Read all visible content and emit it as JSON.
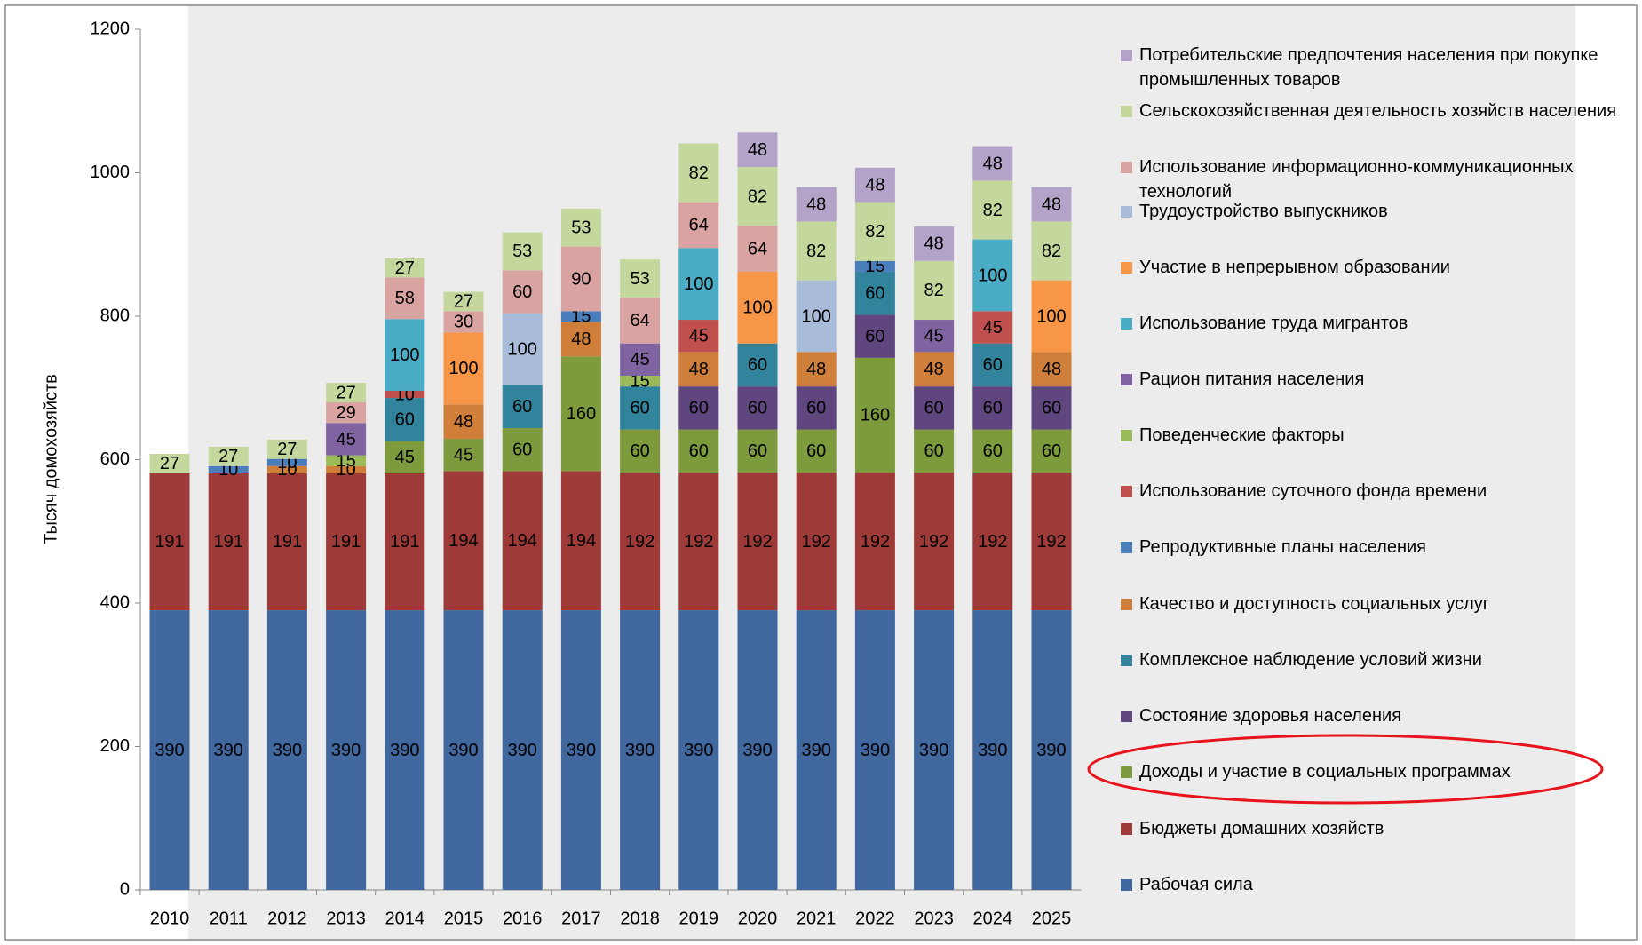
{
  "chart_data": {
    "type": "stacked_bar",
    "ylabel": "Тысяч домохозяйств",
    "categories": [
      "2010",
      "2011",
      "2012",
      "2013",
      "2014",
      "2015",
      "2016",
      "2017",
      "2018",
      "2019",
      "2020",
      "2021",
      "2022",
      "2023",
      "2024",
      "2025"
    ],
    "ylim": [
      0,
      1200
    ],
    "yticks": [
      0,
      200,
      400,
      600,
      800,
      1000,
      1200
    ],
    "series": [
      {
        "name": "Рабочая сила",
        "color": "#40679e",
        "values": [
          390,
          390,
          390,
          390,
          390,
          390,
          390,
          390,
          390,
          390,
          390,
          390,
          390,
          390,
          390,
          390
        ]
      },
      {
        "name": "Бюджеты домашних хозяйств",
        "color": "#9e3b38",
        "values": [
          191,
          191,
          191,
          191,
          191,
          194,
          194,
          194,
          192,
          192,
          192,
          192,
          192,
          192,
          192,
          192
        ]
      },
      {
        "name": "Доходы и участие в социальных программах",
        "color": "#7d9a3c",
        "values": [
          null,
          null,
          null,
          null,
          45,
          45,
          60,
          160,
          60,
          60,
          60,
          60,
          160,
          60,
          60,
          60
        ]
      },
      {
        "name": "Состояние здоровья населения",
        "color": "#5f467f",
        "values": [
          null,
          null,
          null,
          null,
          null,
          null,
          null,
          null,
          null,
          60,
          60,
          60,
          60,
          60,
          60,
          60
        ]
      },
      {
        "name": "Комплексное наблюдение условий жизни",
        "color": "#31849b",
        "values": [
          null,
          null,
          null,
          null,
          60,
          null,
          60,
          null,
          60,
          null,
          60,
          null,
          60,
          null,
          60,
          null
        ]
      },
      {
        "name": "Качество и доступность социальных услуг",
        "color": "#d07f3a",
        "values": [
          null,
          null,
          10,
          10,
          null,
          48,
          null,
          48,
          null,
          48,
          null,
          48,
          null,
          48,
          null,
          48
        ]
      },
      {
        "name": "Репродуктивные планы населения",
        "color": "#4a7ebb",
        "values": [
          null,
          10,
          10,
          null,
          null,
          null,
          null,
          15,
          null,
          null,
          null,
          null,
          15,
          null,
          null,
          null
        ]
      },
      {
        "name": "Использование суточного фонда времени",
        "color": "#c0504d",
        "values": [
          null,
          null,
          null,
          null,
          10,
          null,
          null,
          null,
          null,
          45,
          null,
          null,
          null,
          null,
          45,
          null
        ]
      },
      {
        "name": "Поведенческие факторы",
        "color": "#9bbb59",
        "values": [
          null,
          null,
          null,
          15,
          null,
          null,
          null,
          null,
          15,
          null,
          null,
          null,
          null,
          null,
          null,
          null
        ]
      },
      {
        "name": "Рацион питания населения",
        "color": "#8064a2",
        "values": [
          null,
          null,
          null,
          45,
          null,
          null,
          null,
          null,
          45,
          null,
          null,
          null,
          null,
          45,
          null,
          null
        ]
      },
      {
        "name": "Использование труда мигрантов",
        "color": "#4bacc6",
        "values": [
          null,
          null,
          null,
          null,
          100,
          null,
          null,
          null,
          null,
          100,
          null,
          null,
          null,
          null,
          100,
          null
        ]
      },
      {
        "name": "Участие в непрерывном образовании",
        "color": "#f79646",
        "values": [
          null,
          null,
          null,
          null,
          null,
          100,
          null,
          null,
          null,
          null,
          100,
          null,
          null,
          null,
          null,
          100
        ]
      },
      {
        "name": "Трудоустройство выпускников",
        "color": "#a9bcda",
        "values": [
          null,
          null,
          null,
          null,
          null,
          null,
          100,
          null,
          null,
          null,
          null,
          100,
          null,
          null,
          null,
          null
        ]
      },
      {
        "name": "Использование информационно-коммуникационных технологий",
        "color": "#d9a3a2",
        "values": [
          null,
          null,
          null,
          29,
          58,
          30,
          60,
          90,
          64,
          64,
          64,
          null,
          null,
          null,
          null,
          null
        ]
      },
      {
        "name": "Сельскохозяйственная деятельность хозяйств населения",
        "color": "#c4d79d",
        "values": [
          27,
          27,
          27,
          27,
          27,
          27,
          53,
          53,
          53,
          82,
          82,
          82,
          82,
          82,
          82,
          82
        ]
      },
      {
        "name": "Потребительские предпочтения населения при покупке промышленных товаров",
        "color": "#b4a3c8",
        "values": [
          null,
          null,
          null,
          null,
          null,
          null,
          null,
          null,
          null,
          null,
          48,
          48,
          48,
          48,
          48,
          48
        ]
      }
    ]
  }
}
